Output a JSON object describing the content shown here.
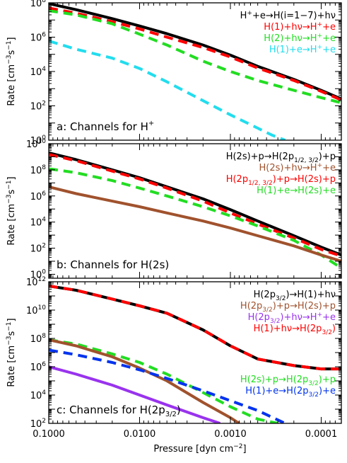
{
  "figure": {
    "xlabel": "Pressure [dyn cm",
    "xlabel_sup": "−2",
    "xlabel_end": "]",
    "xticks": [
      {
        "value": 0.1,
        "label": "0.1000"
      },
      {
        "value": 0.01,
        "label": "0.0100"
      },
      {
        "value": 0.001,
        "label": "0.0010"
      },
      {
        "value": 0.0001,
        "label": "0.0001"
      }
    ],
    "ylabel": {
      "main": "Rate [cm",
      "sup1": "−3",
      "mid": "s",
      "sup2": "−1",
      "end": "]"
    }
  },
  "chart_data": [
    {
      "type": "line",
      "panel_label_text": "a: Channels for H",
      "panel_label_sup": "+",
      "x_scale": "log",
      "x_reversed": true,
      "xlim": [
        0.1,
        6e-05
      ],
      "y_scale": "log",
      "ylim": [
        1,
        100000000
      ],
      "yticks": [
        {
          "base": "10",
          "exp": "0",
          "value": 1
        },
        {
          "base": "10",
          "exp": "2",
          "value": 100
        },
        {
          "base": "10",
          "exp": "4",
          "value": 10000
        },
        {
          "base": "10",
          "exp": "6",
          "value": 1000000
        },
        {
          "base": "10",
          "exp": "8",
          "value": 100000000
        }
      ],
      "legend": {
        "placement": "top-right",
        "entries": [
          {
            "parts": [
              {
                "t": "H"
              },
              {
                "t": "+",
                "s": "sup"
              },
              {
                "t": "+e→H(i=1−7)+hν"
              }
            ],
            "color": "#000000"
          },
          {
            "parts": [
              {
                "t": "H(1)+hν→H"
              },
              {
                "t": "+",
                "s": "sup"
              },
              {
                "t": "+e"
              }
            ],
            "color": "#ff0000"
          },
          {
            "parts": [
              {
                "t": "H(2)+hν→H"
              },
              {
                "t": "+",
                "s": "sup"
              },
              {
                "t": "+e"
              }
            ],
            "color": "#22dd22"
          },
          {
            "parts": [
              {
                "t": "H(1)+e→H"
              },
              {
                "t": "+",
                "s": "sup"
              },
              {
                "t": "+e"
              }
            ],
            "color": "#22ddee"
          }
        ]
      },
      "series": [
        {
          "color": "#000000",
          "dash": "solid",
          "x": [
            0.1,
            0.05,
            0.02,
            0.01,
            0.005,
            0.002,
            0.001,
            0.0005,
            0.0002,
            0.0001,
            6e-05
          ],
          "y": [
            90000000,
            40000000,
            12000000,
            4500000,
            1600000,
            350000,
            90000,
            20000,
            3500,
            800,
            250
          ]
        },
        {
          "color": "#ff0000",
          "dash": "dashed",
          "x": [
            0.1,
            0.05,
            0.02,
            0.01,
            0.005,
            0.002,
            0.001,
            0.0005,
            0.0002,
            0.0001,
            6e-05
          ],
          "y": [
            50000000,
            25000000,
            8000000,
            3000000,
            1000000,
            250000,
            70000,
            16000,
            3000,
            700,
            220
          ]
        },
        {
          "color": "#22dd22",
          "dash": "dashed",
          "x": [
            0.1,
            0.05,
            0.02,
            0.01,
            0.005,
            0.002,
            0.001,
            0.0005,
            0.0002,
            0.0001,
            6e-05
          ],
          "y": [
            35000000,
            20000000,
            6000000,
            1500000,
            350000,
            40000,
            10000,
            3000,
            800,
            300,
            150
          ]
        },
        {
          "color": "#22ddee",
          "dash": "dashed",
          "x": [
            0.1,
            0.05,
            0.02,
            0.01,
            0.005,
            0.002,
            0.001,
            0.0005,
            0.00035,
            0.00025
          ],
          "y": [
            600000,
            200000,
            60000,
            15000,
            2500,
            200,
            30,
            5,
            2,
            1
          ]
        }
      ]
    },
    {
      "type": "line",
      "panel_label_text": "b: Channels for H(2s)",
      "x_scale": "log",
      "x_reversed": true,
      "xlim": [
        0.1,
        6e-05
      ],
      "y_scale": "log",
      "ylim": [
        0.5,
        10000000000
      ],
      "yticks": [
        {
          "base": "10",
          "exp": "0",
          "value": 1
        },
        {
          "base": "10",
          "exp": "2",
          "value": 100
        },
        {
          "base": "10",
          "exp": "4",
          "value": 10000
        },
        {
          "base": "10",
          "exp": "6",
          "value": 1000000
        },
        {
          "base": "10",
          "exp": "8",
          "value": 100000000
        },
        {
          "base": "10",
          "exp": "10",
          "value": 10000000000
        }
      ],
      "legend": {
        "placement": "top-right",
        "entries": [
          {
            "parts": [
              {
                "t": "H(2s)+p→H(2p"
              },
              {
                "t": "1/2, 3/2",
                "s": "sub"
              },
              {
                "t": ")+p"
              }
            ],
            "color": "#000000"
          },
          {
            "parts": [
              {
                "t": "H(2s)+hν→H"
              },
              {
                "t": "+",
                "s": "sup"
              },
              {
                "t": "+e"
              }
            ],
            "color": "#a0522d"
          },
          {
            "parts": [
              {
                "t": "H(2p"
              },
              {
                "t": "1/2, 3/2",
                "s": "sub"
              },
              {
                "t": ")+p→H(2s)+p"
              }
            ],
            "color": "#ff0000"
          },
          {
            "parts": [
              {
                "t": "H(1)+e→H(2s)+e"
              }
            ],
            "color": "#22dd22"
          }
        ]
      },
      "series": [
        {
          "color": "#000000",
          "dash": "solid",
          "x": [
            0.1,
            0.05,
            0.02,
            0.01,
            0.005,
            0.002,
            0.001,
            0.0005,
            0.0002,
            0.0001,
            6e-05
          ],
          "y": [
            2000000000,
            600000000,
            100000000,
            25000000,
            5000000,
            600000,
            90000,
            12000,
            900,
            120,
            30
          ]
        },
        {
          "color": "#ff0000",
          "dash": "dashed",
          "x": [
            0.1,
            0.05,
            0.02,
            0.01,
            0.005,
            0.002,
            0.001,
            0.0005,
            0.0002,
            0.0001,
            6e-05
          ],
          "y": [
            1500000000,
            500000000,
            80000000,
            20000000,
            4000000,
            400000,
            50000,
            7000,
            600,
            80,
            25
          ]
        },
        {
          "color": "#22dd22",
          "dash": "dashed",
          "x": [
            0.1,
            0.05,
            0.02,
            0.01,
            0.005,
            0.002,
            0.001,
            0.0005,
            0.0002,
            0.0001,
            6e-05
          ],
          "y": [
            120000000,
            60000000,
            15000000,
            4000000,
            1000000,
            150000,
            30000,
            5000,
            400,
            30,
            3
          ]
        },
        {
          "color": "#a0522d",
          "dash": "solid",
          "x": [
            0.1,
            0.05,
            0.02,
            0.01,
            0.005,
            0.002,
            0.001,
            0.0005,
            0.0002,
            0.0001,
            6e-05
          ],
          "y": [
            5000000,
            1500000,
            400000,
            150000,
            50000,
            12000,
            3500,
            900,
            150,
            30,
            10
          ]
        }
      ]
    },
    {
      "type": "line",
      "panel_label_text": "c: Channels for H(2p",
      "panel_label_sub": "3/2",
      "panel_label_end": ")",
      "x_scale": "log",
      "x_reversed": true,
      "xlim": [
        0.1,
        6e-05
      ],
      "y_scale": "log",
      "ylim": [
        100,
        1000000000000
      ],
      "yticks": [
        {
          "base": "10",
          "exp": "2",
          "value": 100
        },
        {
          "base": "10",
          "exp": "4",
          "value": 10000
        },
        {
          "base": "10",
          "exp": "6",
          "value": 1000000
        },
        {
          "base": "10",
          "exp": "8",
          "value": 100000000
        },
        {
          "base": "10",
          "exp": "10",
          "value": 10000000000
        },
        {
          "base": "10",
          "exp": "12",
          "value": 1000000000000
        }
      ],
      "legend": {
        "placement": "top-right",
        "entries": [
          {
            "parts": [
              {
                "t": "H(2p"
              },
              {
                "t": "3/2",
                "s": "sub"
              },
              {
                "t": ")→H(1)+hν"
              }
            ],
            "color": "#000000"
          },
          {
            "parts": [
              {
                "t": "H(2p"
              },
              {
                "t": "3/2",
                "s": "sub"
              },
              {
                "t": ")+p→H(2s)+p"
              }
            ],
            "color": "#a0522d"
          },
          {
            "parts": [
              {
                "t": "H(2p"
              },
              {
                "t": "3/2",
                "s": "sub"
              },
              {
                "t": ")+hν→H"
              },
              {
                "t": "+",
                "s": "sup"
              },
              {
                "t": "+e"
              }
            ],
            "color": "#9933ee"
          },
          {
            "parts": [
              {
                "t": "H(1)+hν→H(2p"
              },
              {
                "t": "3/2",
                "s": "sub"
              },
              {
                "t": ")"
              }
            ],
            "color": "#ff0000"
          }
        ]
      },
      "legend2": {
        "placement": "lower-right",
        "entries": [
          {
            "parts": [
              {
                "t": "H(2s)+p→H(2p"
              },
              {
                "t": "3/2",
                "s": "sub"
              },
              {
                "t": ")+p"
              }
            ],
            "color": "#22dd22"
          },
          {
            "parts": [
              {
                "t": "H(1)+e→H(2p"
              },
              {
                "t": "3/2",
                "s": "sub"
              },
              {
                "t": ")+e"
              }
            ],
            "color": "#0033ee"
          }
        ]
      },
      "series": [
        {
          "color": "#000000",
          "dash": "solid",
          "x": [
            0.1,
            0.05,
            0.02,
            0.01,
            0.005,
            0.002,
            0.001,
            0.0005,
            0.0002,
            0.0001,
            6e-05
          ],
          "y": [
            500000000000,
            250000000000,
            60000000000,
            20000000000,
            6000000000,
            400000000,
            30000000,
            3500000,
            1200000,
            700000,
            700000
          ]
        },
        {
          "color": "#ff0000",
          "dash": "dashed",
          "x": [
            0.1,
            0.05,
            0.02,
            0.01,
            0.005,
            0.002,
            0.001,
            0.0005,
            0.0002,
            0.0001,
            6e-05
          ],
          "y": [
            500000000000,
            250000000000,
            60000000000,
            20000000000,
            6000000000,
            400000000,
            30000000,
            3500000,
            1200000,
            700000,
            700000
          ]
        },
        {
          "color": "#22dd22",
          "dash": "dashed",
          "x": [
            0.1,
            0.05,
            0.02,
            0.01,
            0.005,
            0.002,
            0.001,
            0.0005,
            0.0003
          ],
          "y": [
            80000000,
            40000000,
            8000000,
            2000000,
            300000,
            15000,
            1500,
            200,
            100
          ]
        },
        {
          "color": "#a0522d",
          "dash": "solid",
          "x": [
            0.1,
            0.05,
            0.02,
            0.01,
            0.005,
            0.002,
            0.001,
            0.0008
          ],
          "y": [
            80000000,
            30000000,
            5000000,
            800000,
            100000,
            3000,
            250,
            100
          ]
        },
        {
          "color": "#0033ee",
          "dash": "dashed",
          "x": [
            0.1,
            0.05,
            0.02,
            0.01,
            0.005,
            0.002,
            0.001,
            0.0005,
            0.00025
          ],
          "y": [
            15000000,
            7000000,
            2000000,
            600000,
            150000,
            20000,
            4000,
            800,
            100
          ]
        },
        {
          "color": "#9933ee",
          "dash": "solid",
          "x": [
            0.1,
            0.05,
            0.02,
            0.01,
            0.005,
            0.002,
            0.0013
          ],
          "y": [
            1000000,
            300000,
            50000,
            10000,
            2000,
            250,
            100
          ]
        }
      ]
    }
  ]
}
